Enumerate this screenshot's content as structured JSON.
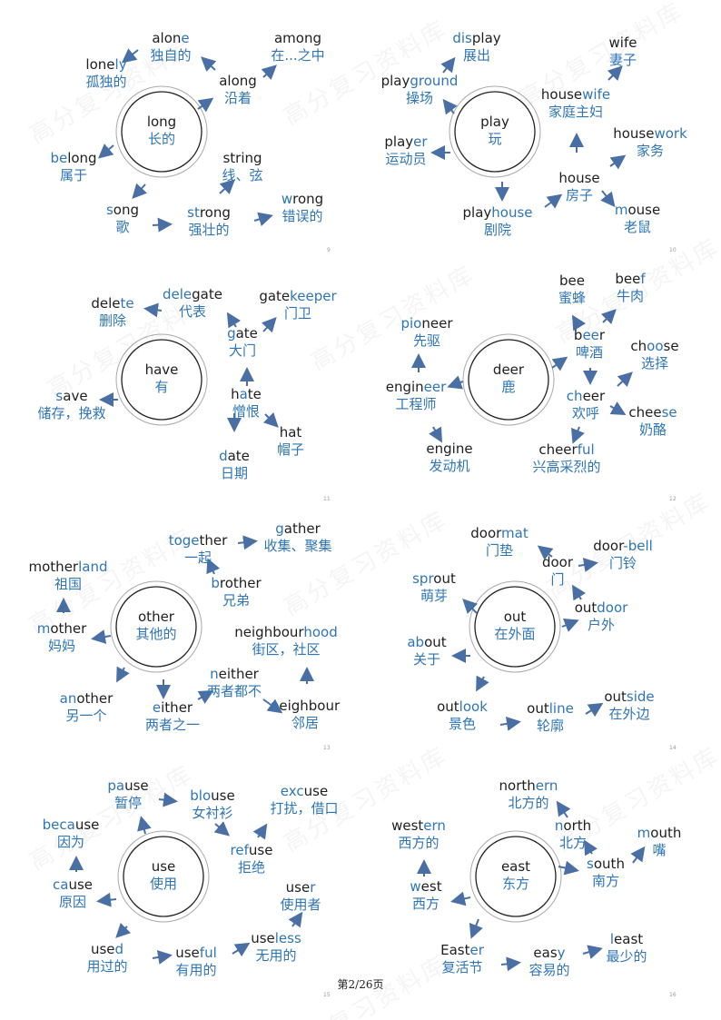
{
  "watermark": "高分复习资料库",
  "footer": "第2/26页",
  "colors": {
    "highlight": "#2e75b6",
    "text": "#1e1e1e",
    "arrow": "#4a6fa5"
  },
  "panels": [
    {
      "page_no": "9",
      "center": {
        "en": [
          "long"
        ],
        "zh": "长的"
      },
      "nodes": [
        {
          "en": [
            "alon",
            "e"
          ],
          "zh": "独自的"
        },
        {
          "en": [
            "lone",
            "ly"
          ],
          "zh": "孤独的"
        },
        {
          "en": [
            "along"
          ],
          "zh": "沿着"
        },
        {
          "en": [
            "among"
          ],
          "zh": "在...之中"
        },
        {
          "en": [
            "",
            "be",
            "long"
          ],
          "zh": "属于"
        },
        {
          "en": [
            "string"
          ],
          "zh": "线、弦"
        },
        {
          "en": [
            "",
            "s",
            "ong"
          ],
          "zh": "歌"
        },
        {
          "en": [
            "",
            "st",
            "rong"
          ],
          "zh": "强壮的"
        },
        {
          "en": [
            "",
            "w",
            "rong"
          ],
          "zh": "错误的"
        }
      ]
    },
    {
      "page_no": "10",
      "center": {
        "en": [
          "play"
        ],
        "zh": "玩"
      },
      "nodes": [
        {
          "en": [
            "",
            "dis",
            "play"
          ],
          "zh": "展出"
        },
        {
          "en": [
            "play",
            "ground"
          ],
          "zh": "操场"
        },
        {
          "en": [
            "play",
            "er"
          ],
          "zh": "运动员"
        },
        {
          "en": [
            "play",
            "house"
          ],
          "zh": "剧院"
        },
        {
          "en": [
            "house"
          ],
          "zh": "房子"
        },
        {
          "en": [
            "house",
            "wife"
          ],
          "zh": "家庭主妇"
        },
        {
          "en": [
            "wife"
          ],
          "zh": "妻子"
        },
        {
          "en": [
            "house",
            "work"
          ],
          "zh": "家务"
        },
        {
          "en": [
            "",
            "m",
            "ouse"
          ],
          "zh": "老鼠"
        }
      ]
    },
    {
      "page_no": "11",
      "center": {
        "en": [
          "have"
        ],
        "zh": "有"
      },
      "nodes": [
        {
          "en": [
            "dele",
            "te"
          ],
          "zh": "删除"
        },
        {
          "en": [
            "",
            "dele",
            "gate"
          ],
          "zh": "代表"
        },
        {
          "en": [
            "gate",
            "keeper"
          ],
          "zh": "门卫"
        },
        {
          "en": [
            "",
            "g",
            "ate"
          ],
          "zh": "大门"
        },
        {
          "en": [
            "",
            "s",
            "ave"
          ],
          "zh": "储存，挽救"
        },
        {
          "en": [
            "h",
            "a",
            "te"
          ],
          "zh": "憎恨"
        },
        {
          "en": [
            "",
            "d",
            "ate"
          ],
          "zh": "日期"
        },
        {
          "en": [
            "hat"
          ],
          "zh": "帽子"
        }
      ]
    },
    {
      "page_no": "12",
      "center": {
        "en": [
          "deer"
        ],
        "zh": "鹿"
      },
      "nodes": [
        {
          "en": [
            "bee"
          ],
          "zh": "蜜蜂"
        },
        {
          "en": [
            "bee",
            "f"
          ],
          "zh": "牛肉"
        },
        {
          "en": [
            "",
            "pio",
            "neer"
          ],
          "zh": "先驱"
        },
        {
          "en": [
            "b",
            "ee",
            "r"
          ],
          "zh": "啤酒"
        },
        {
          "en": [
            "ch",
            "oo",
            "se"
          ],
          "zh": "选择"
        },
        {
          "en": [
            "engin",
            "eer"
          ],
          "zh": "工程师"
        },
        {
          "en": [
            "",
            "ch",
            "eer"
          ],
          "zh": "欢呼"
        },
        {
          "en": [
            "chee",
            "se"
          ],
          "zh": "奶酪"
        },
        {
          "en": [
            "engine"
          ],
          "zh": "发动机"
        },
        {
          "en": [
            "cheer",
            "ful"
          ],
          "zh": "兴高采烈的"
        }
      ]
    },
    {
      "page_no": "13",
      "center": {
        "en": [
          "other"
        ],
        "zh": "其他的"
      },
      "nodes": [
        {
          "en": [
            "",
            "toge",
            "ther"
          ],
          "zh": "一起"
        },
        {
          "en": [
            "",
            "g",
            "ather"
          ],
          "zh": "收集、聚集"
        },
        {
          "en": [
            "mother",
            "land"
          ],
          "zh": "祖国"
        },
        {
          "en": [
            "",
            "b",
            "rother"
          ],
          "zh": "兄弟"
        },
        {
          "en": [
            "",
            "m",
            "other"
          ],
          "zh": "妈妈"
        },
        {
          "en": [
            "neighbour",
            "hood"
          ],
          "zh": "街区，社区"
        },
        {
          "en": [
            "",
            "n",
            "either"
          ],
          "zh": "两者都不"
        },
        {
          "en": [
            "",
            "an",
            "other"
          ],
          "zh": "另一个"
        },
        {
          "en": [
            "",
            "e",
            "ither"
          ],
          "zh": "两者之一"
        },
        {
          "en": [
            "",
            "n",
            "eighbour"
          ],
          "zh": "邻居"
        }
      ]
    },
    {
      "page_no": "14",
      "center": {
        "en": [
          "out"
        ],
        "zh": "在外面"
      },
      "nodes": [
        {
          "en": [
            "door",
            "mat"
          ],
          "zh": "门垫"
        },
        {
          "en": [
            "door"
          ],
          "zh": "门"
        },
        {
          "en": [
            "door",
            "-bell"
          ],
          "zh": "门铃"
        },
        {
          "en": [
            "",
            "spr",
            "out"
          ],
          "zh": "萌芽"
        },
        {
          "en": [
            "out",
            "door"
          ],
          "zh": "户外"
        },
        {
          "en": [
            "",
            "ab",
            "out"
          ],
          "zh": "关于"
        },
        {
          "en": [
            "out",
            "look"
          ],
          "zh": "景色"
        },
        {
          "en": [
            "out",
            "line"
          ],
          "zh": "轮廓"
        },
        {
          "en": [
            "out",
            "side"
          ],
          "zh": "在外边"
        }
      ]
    },
    {
      "page_no": "15",
      "center": {
        "en": [
          "use"
        ],
        "zh": "使用"
      },
      "nodes": [
        {
          "en": [
            "",
            "pa",
            "use"
          ],
          "zh": "暂停"
        },
        {
          "en": [
            "",
            "blo",
            "use"
          ],
          "zh": "女衬衫"
        },
        {
          "en": [
            "",
            "exc",
            "use"
          ],
          "zh": "打扰，借口"
        },
        {
          "en": [
            "",
            "beca",
            "use"
          ],
          "zh": "因为"
        },
        {
          "en": [
            "",
            "ref",
            "use"
          ],
          "zh": "拒绝"
        },
        {
          "en": [
            "",
            "ca",
            "use"
          ],
          "zh": "原因"
        },
        {
          "en": [
            "use",
            "r"
          ],
          "zh": "使用者"
        },
        {
          "en": [
            "use",
            "d"
          ],
          "zh": "用过的"
        },
        {
          "en": [
            "use",
            "ful"
          ],
          "zh": "有用的"
        },
        {
          "en": [
            "use",
            "less"
          ],
          "zh": "无用的"
        }
      ]
    },
    {
      "page_no": "16",
      "center": {
        "en": [
          "east"
        ],
        "zh": "东方"
      },
      "nodes": [
        {
          "en": [
            "north",
            "ern"
          ],
          "zh": "北方的"
        },
        {
          "en": [
            "west",
            "ern"
          ],
          "zh": "西方的"
        },
        {
          "en": [
            "",
            "n",
            "orth"
          ],
          "zh": "北方"
        },
        {
          "en": [
            "",
            "m",
            "outh"
          ],
          "zh": "嘴"
        },
        {
          "en": [
            "",
            "s",
            "outh"
          ],
          "zh": "南方"
        },
        {
          "en": [
            "",
            "w",
            "est"
          ],
          "zh": "西方"
        },
        {
          "en": [
            "East",
            "er"
          ],
          "zh": "复活节"
        },
        {
          "en": [
            "eas",
            "y"
          ],
          "zh": "容易的"
        },
        {
          "en": [
            "",
            "l",
            "east"
          ],
          "zh": "最少的"
        }
      ]
    }
  ]
}
